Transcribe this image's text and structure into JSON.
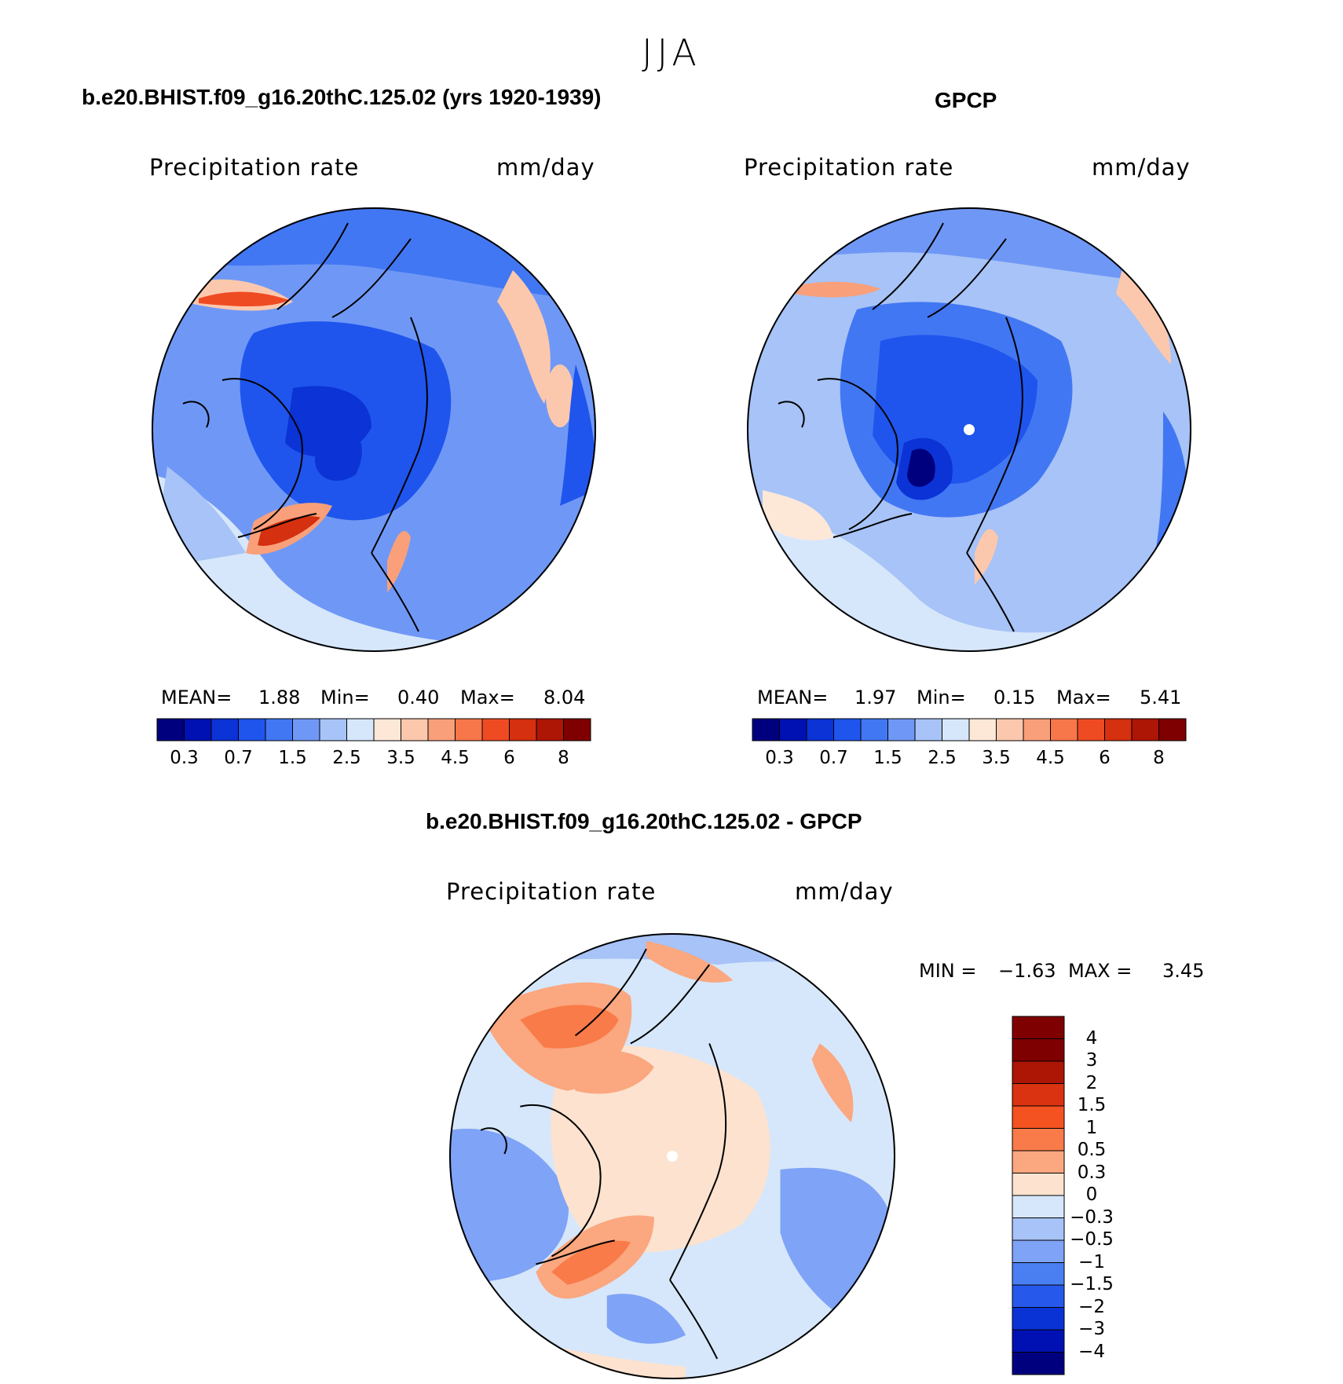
{
  "season": "JJA",
  "panels": [
    {
      "title": "b.e20.BHIST.f09_g16.20thC.125.02 (yrs 1920-1939)",
      "variable": "Precipitation rate",
      "units": "mm/day",
      "stats": {
        "mean_label": "MEAN=",
        "mean": "1.88",
        "min_label": "Min=",
        "min": "0.40",
        "max_label": "Max=",
        "max": "8.04"
      },
      "colorbar_ticks": [
        "0.3",
        "0.7",
        "1.5",
        "2.5",
        "3.5",
        "4.5",
        "6",
        "8"
      ]
    },
    {
      "title": "GPCP",
      "variable": "Precipitation rate",
      "units": "mm/day",
      "stats": {
        "mean_label": "MEAN=",
        "mean": "1.97",
        "min_label": "Min=",
        "min": "0.15",
        "max_label": "Max=",
        "max": "5.41"
      },
      "colorbar_ticks": [
        "0.3",
        "0.7",
        "1.5",
        "2.5",
        "3.5",
        "4.5",
        "6",
        "8"
      ]
    }
  ],
  "diff_panel": {
    "title": "b.e20.BHIST.f09_g16.20thC.125.02 - GPCP",
    "variable": "Precipitation rate",
    "units": "mm/day",
    "stats": {
      "min_label": "MIN =",
      "min": "−1.63",
      "max_label": "MAX =",
      "max": "3.45"
    },
    "colorbar_ticks": [
      "4",
      "3",
      "2",
      "1.5",
      "1",
      "0.5",
      "0.3",
      "0",
      "−0.3",
      "−0.5",
      "−1",
      "−1.5",
      "−2",
      "−3",
      "−4"
    ]
  },
  "colors": {
    "seq": [
      "#00007f",
      "#0011b3",
      "#0b33d6",
      "#1f55ed",
      "#4277f3",
      "#6f98f6",
      "#a7c3f7",
      "#d6e7fb",
      "#fde8d8",
      "#fcc8ad",
      "#f9a07a",
      "#f7764a",
      "#ef4b22",
      "#d5300f",
      "#ad1505",
      "#7f0000"
    ],
    "div": [
      "#7f0000",
      "#ad1505",
      "#d93311",
      "#f55221",
      "#f97b49",
      "#fba77f",
      "#fce2cf",
      "#d6e7fb",
      "#a7c3f7",
      "#7fa3f6",
      "#4a7ff2",
      "#2659eb",
      "#0a33d6",
      "#0011b3",
      "#00007f"
    ]
  }
}
